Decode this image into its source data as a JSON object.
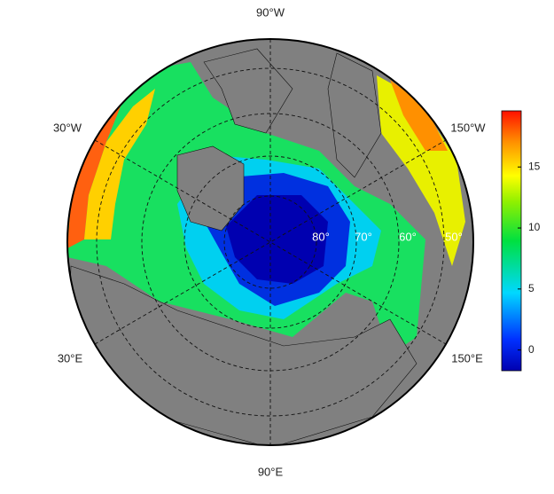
{
  "map": {
    "longitude_labels": [
      "90°W",
      "30°W",
      "150°W",
      "30°E",
      "150°E",
      "90°E"
    ],
    "latitude_labels": [
      "80°",
      "70°",
      "60°",
      "50°"
    ],
    "colorbar": {
      "lim": [
        -1.7,
        19.6
      ],
      "ticks": [
        0,
        5,
        10,
        15
      ]
    }
  }
}
